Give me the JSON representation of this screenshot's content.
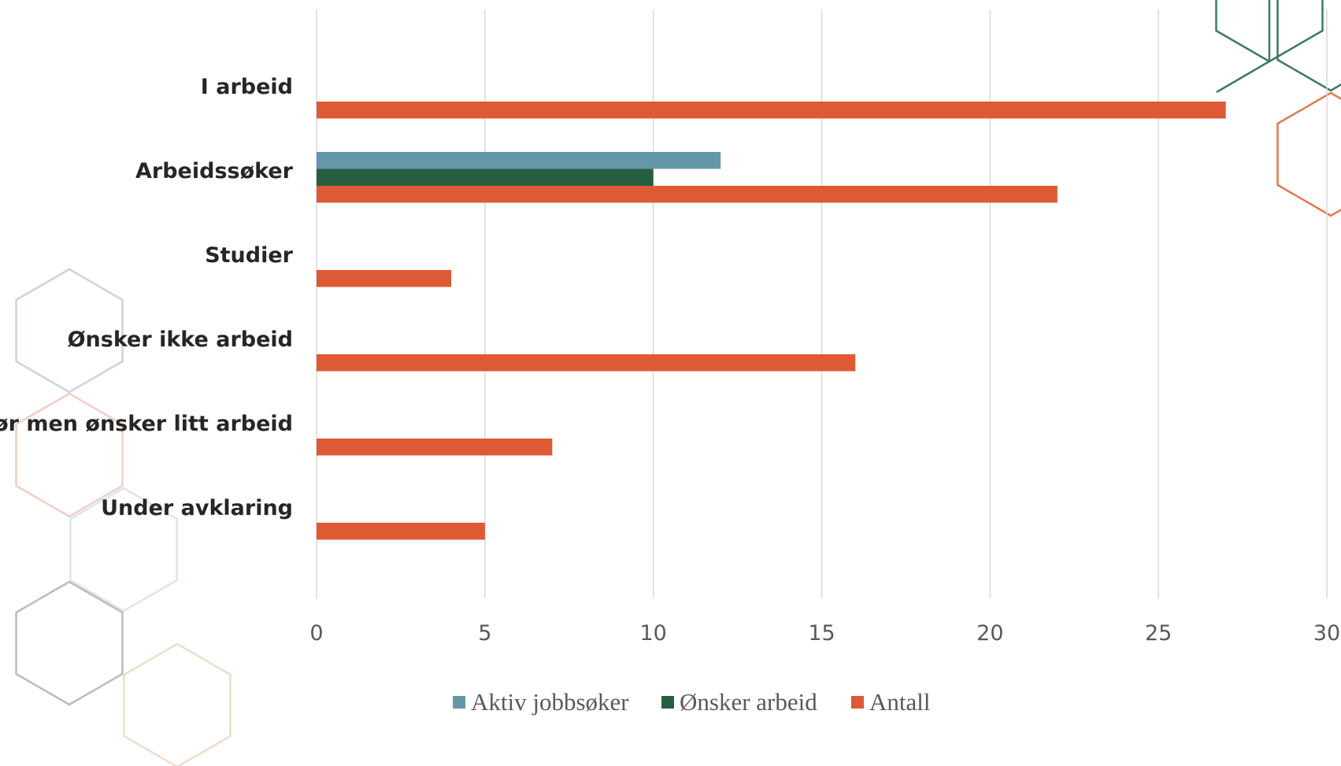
{
  "colors": {
    "aktiv": "#6597aa",
    "onsker": "#265e42",
    "antall": "#de5a34",
    "deco_green": "#3c7a60",
    "deco_orange": "#e07a50",
    "deco_gray": "#c9cfd0",
    "deco_dark": "#b5b5b5",
    "deco_tan": "#ecd9c3",
    "deco_pink": "#f2c9bd",
    "deco_blue": "#d7e3ec"
  },
  "chart_data": {
    "type": "bar",
    "orientation": "horizontal",
    "categories": [
      "I arbeid",
      "Arbeidssøker",
      "Studier",
      "Ønsker ikke arbeid",
      "Ufør men ønsker litt arbeid",
      "Under avklaring"
    ],
    "series": [
      {
        "name": "Aktiv jobbsøker",
        "color_key": "aktiv",
        "values": [
          null,
          12,
          null,
          null,
          null,
          null
        ]
      },
      {
        "name": "Ønsker arbeid",
        "color_key": "onsker",
        "values": [
          null,
          10,
          null,
          null,
          null,
          null
        ]
      },
      {
        "name": "Antall",
        "color_key": "antall",
        "values": [
          27,
          22,
          4,
          16,
          7,
          5
        ]
      }
    ],
    "xlim": [
      0,
      30
    ],
    "xticks": [
      "0",
      "5",
      "10",
      "15",
      "20",
      "25",
      "30"
    ],
    "grid": true,
    "legend_position": "bottom",
    "title": "",
    "xlabel": "",
    "ylabel": ""
  }
}
